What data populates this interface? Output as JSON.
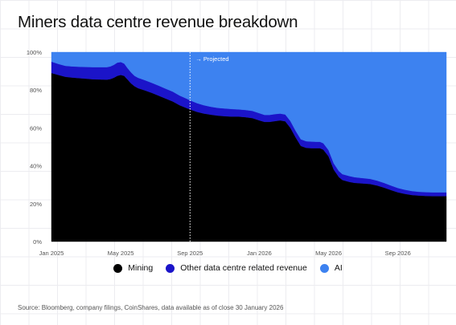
{
  "title": "Miners data centre revenue breakdown",
  "source": "Source: Bloomberg, company filings, CoinShares, data available as of close 30 January 2026",
  "chart_data": {
    "type": "area",
    "stacked": true,
    "title": "Miners data centre revenue breakdown",
    "xlabel": "",
    "ylabel": "",
    "ylim": [
      0,
      100
    ],
    "y_ticks": [
      0,
      20,
      40,
      60,
      80,
      100
    ],
    "y_tick_labels": [
      "0%",
      "20%",
      "40%",
      "60%",
      "80%",
      "100%"
    ],
    "x_range": [
      "2025-01",
      "2026-11"
    ],
    "x_tick_labels": [
      "Jan 2025",
      "May 2025",
      "Sep 2025",
      "Jan 2026",
      "May 2026",
      "Sep 2026"
    ],
    "x_tick_months": [
      0,
      4,
      8,
      12,
      16,
      20
    ],
    "x": [
      0,
      0.4,
      0.8,
      1.2,
      1.6,
      2.0,
      2.4,
      2.8,
      3.2,
      3.4,
      3.6,
      3.8,
      4.0,
      4.2,
      4.4,
      4.6,
      4.8,
      5.0,
      5.4,
      5.8,
      6.2,
      6.6,
      7.0,
      7.4,
      7.8,
      8.0,
      8.4,
      8.8,
      9.2,
      9.6,
      10.0,
      10.4,
      10.8,
      11.2,
      11.6,
      12.0,
      12.3,
      12.6,
      12.9,
      13.2,
      13.5,
      13.8,
      14.1,
      14.4,
      14.7,
      15.0,
      15.3,
      15.5,
      15.7,
      16.0,
      16.3,
      16.6,
      16.8,
      17.0,
      17.2,
      17.5,
      17.8,
      18.1,
      18.4,
      18.8,
      19.2,
      19.6,
      20.0,
      20.4,
      20.8,
      21.2,
      21.6,
      22.0,
      22.4,
      22.8
    ],
    "projected_from": "Sep 2025",
    "projected_label": "→ Projected",
    "series": [
      {
        "name": "Mining",
        "color": "#000000",
        "values": [
          89,
          88,
          87,
          86.6,
          86.3,
          86,
          85.7,
          85.6,
          85.5,
          85.8,
          86.5,
          87.5,
          88,
          87.5,
          85.5,
          83.5,
          82,
          81,
          79.8,
          78.5,
          77,
          75.5,
          74,
          72,
          70.5,
          69.8,
          68.5,
          67.6,
          67,
          66.5,
          66.2,
          66,
          66,
          65.7,
          65.2,
          64,
          63.2,
          63.2,
          63.6,
          64,
          63.5,
          60,
          55,
          50.5,
          49.5,
          49.3,
          49.3,
          49.3,
          48.5,
          45,
          38,
          34,
          32.5,
          32,
          31.5,
          31,
          30.8,
          30.6,
          30.4,
          29.6,
          28.5,
          27.2,
          26,
          25.2,
          24.6,
          24.3,
          24.1,
          24,
          24,
          24
        ]
      },
      {
        "name": "Other data centre related revenue",
        "color": "#1b14c9",
        "values": [
          6,
          5.8,
          5.8,
          5.9,
          6,
          6.2,
          6.4,
          6.5,
          6.6,
          6.7,
          6.8,
          7,
          6.8,
          6.5,
          6,
          5.8,
          5.5,
          5.5,
          5.4,
          5.3,
          5.3,
          5.2,
          5.2,
          5.1,
          5,
          4.8,
          4.6,
          4.4,
          4.2,
          4.1,
          4.1,
          4,
          3.8,
          3.8,
          3.8,
          3.8,
          3.7,
          3.7,
          3.7,
          3.6,
          3.6,
          3.6,
          3.5,
          3.5,
          3.5,
          3.5,
          3.4,
          3.4,
          3.4,
          3.3,
          3.3,
          3.2,
          3.1,
          3.1,
          3.1,
          3,
          2.9,
          2.8,
          2.7,
          2.6,
          2.5,
          2.4,
          2.3,
          2.2,
          2.1,
          2,
          2,
          2,
          2,
          2
        ]
      },
      {
        "name": "AI",
        "color": "#3d82f0",
        "values": [
          5,
          6.2,
          7.2,
          7.5,
          7.7,
          7.8,
          7.9,
          7.9,
          7.9,
          7.5,
          6.7,
          5.5,
          5.2,
          6,
          8.5,
          10.7,
          12.5,
          13.5,
          14.8,
          16.2,
          17.7,
          19.3,
          20.8,
          22.9,
          24.5,
          25.4,
          26.9,
          28,
          28.8,
          29.4,
          29.7,
          30,
          30.2,
          30.5,
          31,
          32.2,
          33.1,
          33.1,
          32.7,
          32.4,
          32.9,
          36.4,
          41.5,
          46,
          47,
          47.2,
          47.3,
          47.3,
          48.1,
          51.7,
          58.7,
          62.8,
          64.4,
          64.9,
          65.4,
          66,
          66.3,
          66.6,
          66.9,
          67.8,
          69,
          70.4,
          71.7,
          72.6,
          73.3,
          73.7,
          73.9,
          74,
          74,
          74
        ]
      }
    ],
    "legend_position": "bottom-center",
    "grid": false
  },
  "legend": [
    {
      "label": "Mining",
      "color": "#000000"
    },
    {
      "label": "Other data centre related revenue",
      "color": "#1b14c9"
    },
    {
      "label": "AI",
      "color": "#3d82f0"
    }
  ]
}
